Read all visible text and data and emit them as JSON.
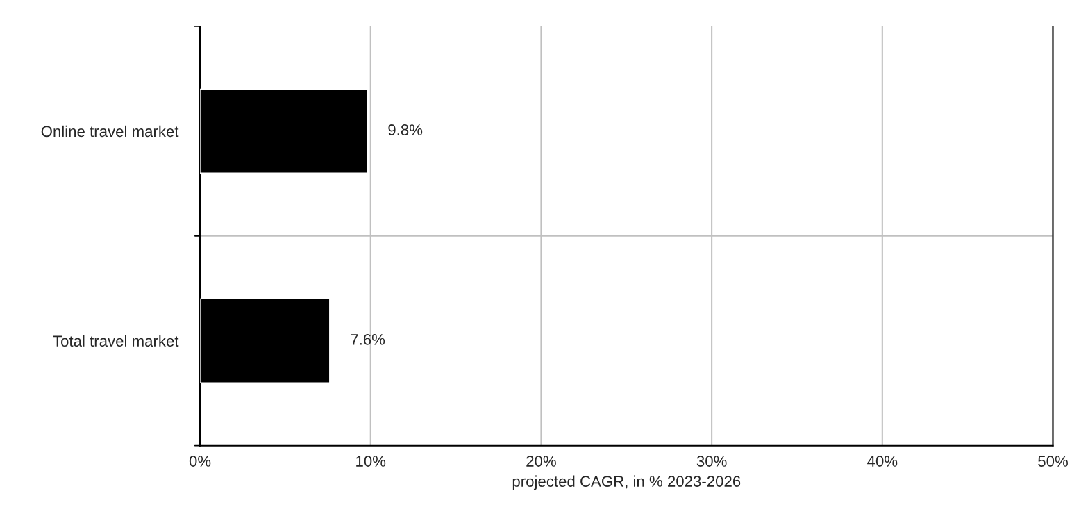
{
  "chart_data": {
    "type": "bar",
    "orientation": "horizontal",
    "categories": [
      "Online travel market",
      "Total travel market"
    ],
    "values": [
      9.8,
      7.6
    ],
    "color": "#000000",
    "value_labels": [
      "9.8%",
      "7.6%"
    ],
    "xlim": [
      0,
      50
    ],
    "xticks": [
      {
        "value": 0,
        "label": "0%"
      },
      {
        "value": 10,
        "label": "10%"
      },
      {
        "value": 20,
        "label": "20%"
      },
      {
        "value": 30,
        "label": "30%"
      },
      {
        "value": 40,
        "label": "40%"
      },
      {
        "value": 50,
        "label": "50%"
      }
    ],
    "xlabel": "projected CAGR, in % 2023-2026",
    "grid": true
  }
}
